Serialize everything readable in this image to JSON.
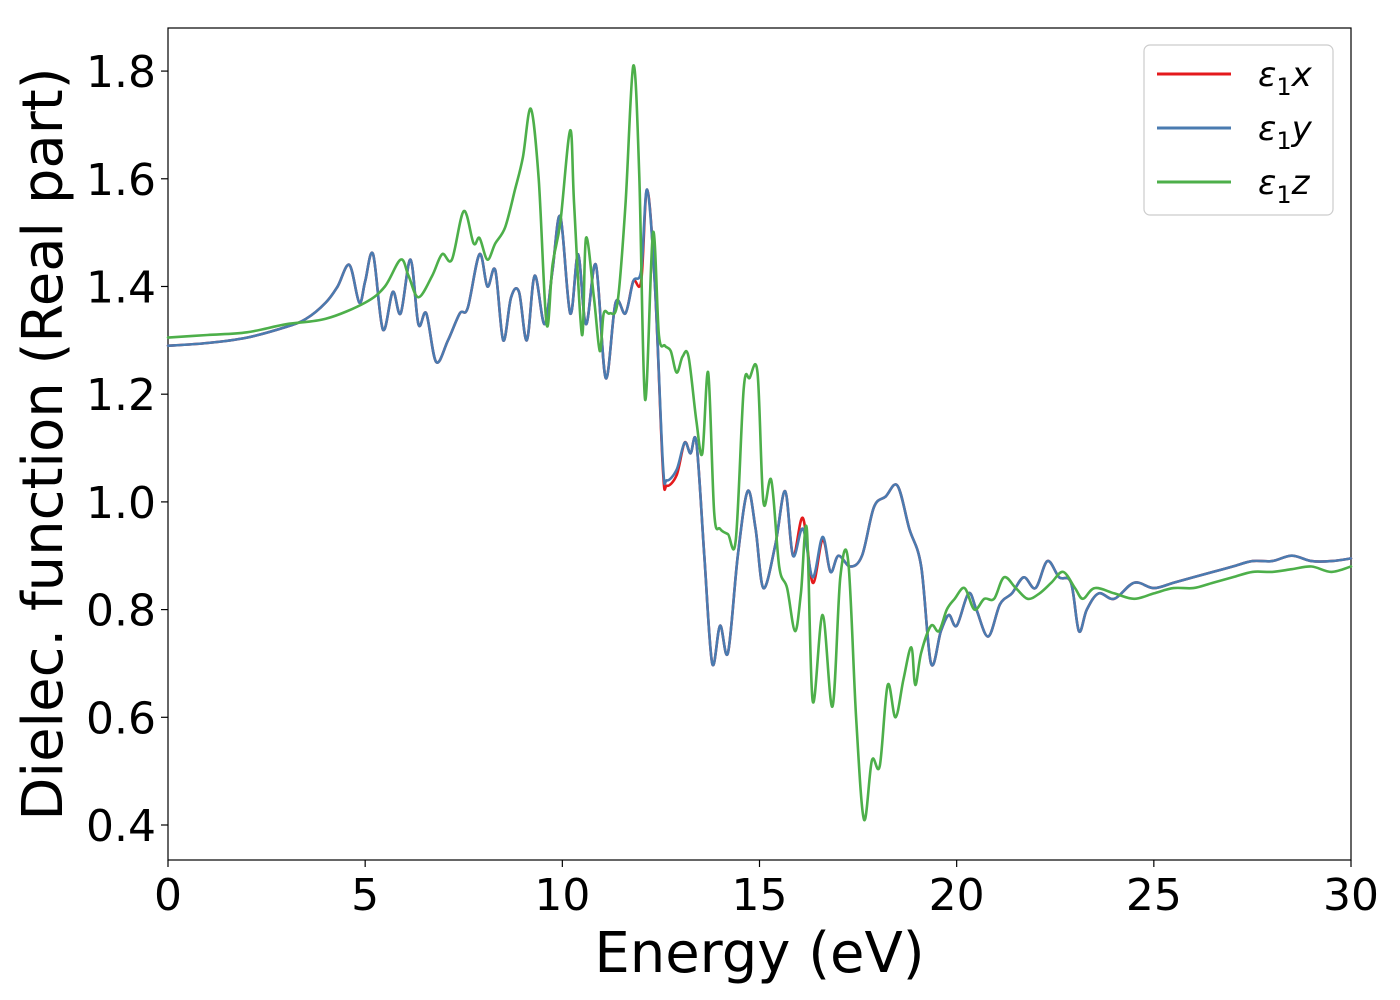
{
  "chart_data": {
    "type": "line",
    "xlabel": "Energy (eV)",
    "ylabel": "Dielec. function (Real part)",
    "xlim": [
      0,
      30
    ],
    "ylim": [
      0.335,
      1.88
    ],
    "xticks": [
      0,
      5,
      10,
      15,
      20,
      25,
      30
    ],
    "yticks": [
      0.4,
      0.6,
      0.8,
      1.0,
      1.2,
      1.4,
      1.6,
      1.8
    ],
    "xtick_labels": [
      "0",
      "5",
      "10",
      "15",
      "20",
      "25",
      "30"
    ],
    "ytick_labels": [
      "0.4",
      "0.6",
      "0.8",
      "1.0",
      "1.2",
      "1.4",
      "1.6",
      "1.8"
    ],
    "grid": false,
    "legend_position": "top-right",
    "series": [
      {
        "name": "ε1x",
        "legend": {
          "base": "ε",
          "sub": "1",
          "var": "x"
        },
        "color": "#e41a1c",
        "x": [
          0,
          1,
          2,
          3,
          3.5,
          4,
          4.3,
          4.6,
          4.85,
          5.0,
          5.2,
          5.45,
          5.7,
          5.9,
          6.15,
          6.35,
          6.55,
          6.8,
          7.1,
          7.4,
          7.6,
          7.9,
          8.1,
          8.3,
          8.5,
          8.7,
          8.9,
          9.1,
          9.3,
          9.55,
          9.75,
          9.95,
          10.2,
          10.4,
          10.6,
          10.85,
          11.1,
          11.35,
          11.6,
          11.8,
          12.0,
          12.15,
          12.35,
          12.55,
          12.65,
          12.9,
          13.1,
          13.25,
          13.4,
          13.6,
          13.8,
          14.0,
          14.2,
          14.45,
          14.7,
          14.9,
          15.1,
          15.4,
          15.65,
          15.85,
          16.1,
          16.35,
          16.6,
          16.8,
          17.0,
          17.3,
          17.6,
          17.9,
          18.2,
          18.5,
          18.8,
          19.1,
          19.35,
          19.6,
          19.8,
          20.0,
          20.3,
          20.5,
          20.8,
          21.1,
          21.4,
          21.7,
          22.0,
          22.3,
          22.6,
          22.9,
          23.1,
          23.3,
          23.6,
          24.0,
          24.5,
          25.0,
          25.5,
          26.0,
          26.5,
          27.0,
          27.5,
          28.0,
          28.5,
          29.0,
          29.5,
          30.0
        ],
        "y": [
          1.29,
          1.295,
          1.305,
          1.325,
          1.34,
          1.37,
          1.4,
          1.44,
          1.37,
          1.41,
          1.46,
          1.32,
          1.39,
          1.35,
          1.45,
          1.33,
          1.35,
          1.26,
          1.3,
          1.35,
          1.36,
          1.46,
          1.4,
          1.43,
          1.3,
          1.38,
          1.39,
          1.3,
          1.42,
          1.33,
          1.43,
          1.53,
          1.35,
          1.46,
          1.33,
          1.44,
          1.23,
          1.37,
          1.35,
          1.41,
          1.41,
          1.58,
          1.4,
          1.06,
          1.03,
          1.05,
          1.11,
          1.09,
          1.11,
          0.9,
          0.7,
          0.77,
          0.72,
          0.9,
          1.02,
          0.95,
          0.84,
          0.92,
          1.02,
          0.9,
          0.97,
          0.85,
          0.93,
          0.87,
          0.9,
          0.88,
          0.9,
          0.99,
          1.01,
          1.03,
          0.95,
          0.88,
          0.7,
          0.76,
          0.79,
          0.77,
          0.83,
          0.8,
          0.75,
          0.81,
          0.83,
          0.86,
          0.84,
          0.89,
          0.86,
          0.85,
          0.76,
          0.8,
          0.83,
          0.82,
          0.85,
          0.84,
          0.85,
          0.86,
          0.87,
          0.88,
          0.89,
          0.89,
          0.9,
          0.89,
          0.89,
          0.895
        ]
      },
      {
        "name": "ε1y",
        "legend": {
          "base": "ε",
          "sub": "1",
          "var": "y"
        },
        "color": "#4a7bb0",
        "x": [
          0,
          1,
          2,
          3,
          3.5,
          4,
          4.3,
          4.6,
          4.85,
          5.0,
          5.2,
          5.45,
          5.7,
          5.9,
          6.15,
          6.35,
          6.55,
          6.8,
          7.1,
          7.4,
          7.6,
          7.9,
          8.1,
          8.3,
          8.5,
          8.7,
          8.9,
          9.1,
          9.3,
          9.55,
          9.75,
          9.95,
          10.2,
          10.4,
          10.6,
          10.85,
          11.1,
          11.35,
          11.6,
          11.8,
          12.0,
          12.15,
          12.35,
          12.55,
          12.65,
          12.9,
          13.1,
          13.25,
          13.4,
          13.6,
          13.8,
          14.0,
          14.2,
          14.45,
          14.7,
          14.9,
          15.1,
          15.4,
          15.65,
          15.85,
          16.1,
          16.35,
          16.6,
          16.8,
          17.0,
          17.3,
          17.6,
          17.9,
          18.2,
          18.5,
          18.8,
          19.1,
          19.35,
          19.6,
          19.8,
          20.0,
          20.3,
          20.5,
          20.8,
          21.1,
          21.4,
          21.7,
          22.0,
          22.3,
          22.6,
          22.9,
          23.1,
          23.3,
          23.6,
          24.0,
          24.5,
          25.0,
          25.5,
          26.0,
          26.5,
          27.0,
          27.5,
          28.0,
          28.5,
          29.0,
          29.5,
          30.0
        ],
        "y": [
          1.29,
          1.295,
          1.305,
          1.325,
          1.34,
          1.37,
          1.4,
          1.44,
          1.37,
          1.41,
          1.46,
          1.32,
          1.39,
          1.35,
          1.45,
          1.33,
          1.35,
          1.26,
          1.3,
          1.35,
          1.36,
          1.46,
          1.4,
          1.43,
          1.3,
          1.38,
          1.39,
          1.3,
          1.42,
          1.33,
          1.43,
          1.53,
          1.35,
          1.46,
          1.33,
          1.44,
          1.23,
          1.37,
          1.35,
          1.41,
          1.43,
          1.58,
          1.4,
          1.07,
          1.04,
          1.06,
          1.11,
          1.09,
          1.11,
          0.9,
          0.7,
          0.77,
          0.72,
          0.9,
          1.02,
          0.95,
          0.84,
          0.92,
          1.02,
          0.9,
          0.95,
          0.86,
          0.935,
          0.87,
          0.9,
          0.88,
          0.9,
          0.99,
          1.01,
          1.03,
          0.95,
          0.88,
          0.7,
          0.76,
          0.79,
          0.77,
          0.83,
          0.8,
          0.75,
          0.81,
          0.83,
          0.86,
          0.84,
          0.89,
          0.86,
          0.85,
          0.76,
          0.8,
          0.83,
          0.82,
          0.85,
          0.84,
          0.85,
          0.86,
          0.87,
          0.88,
          0.89,
          0.89,
          0.9,
          0.89,
          0.89,
          0.895
        ]
      },
      {
        "name": "ε1z",
        "legend": {
          "base": "ε",
          "sub": "1",
          "var": "z"
        },
        "color": "#4daf4a",
        "x": [
          0,
          1,
          2,
          3,
          4,
          5,
          5.5,
          5.9,
          6.1,
          6.35,
          6.7,
          6.95,
          7.2,
          7.5,
          7.75,
          7.9,
          8.1,
          8.3,
          8.55,
          8.8,
          9.0,
          9.2,
          9.4,
          9.6,
          9.75,
          9.95,
          10.2,
          10.3,
          10.5,
          10.6,
          10.8,
          10.95,
          11.05,
          11.2,
          11.4,
          11.6,
          11.8,
          11.95,
          12.1,
          12.3,
          12.45,
          12.6,
          12.75,
          12.9,
          13.05,
          13.2,
          13.4,
          13.55,
          13.7,
          13.85,
          14.0,
          14.2,
          14.4,
          14.6,
          14.75,
          14.95,
          15.1,
          15.3,
          15.5,
          15.7,
          15.9,
          16.05,
          16.2,
          16.35,
          16.6,
          16.85,
          17.05,
          17.25,
          17.45,
          17.65,
          17.85,
          18.05,
          18.25,
          18.45,
          18.65,
          18.85,
          18.95,
          19.1,
          19.35,
          19.55,
          19.75,
          19.95,
          20.2,
          20.45,
          20.7,
          20.95,
          21.2,
          21.5,
          21.8,
          22.1,
          22.4,
          22.7,
          23.0,
          23.2,
          23.5,
          24.0,
          24.5,
          25.0,
          25.5,
          26.0,
          26.5,
          27.0,
          27.5,
          28.0,
          28.5,
          29.0,
          29.5,
          30.0
        ],
        "y": [
          1.305,
          1.31,
          1.315,
          1.33,
          1.34,
          1.37,
          1.4,
          1.45,
          1.42,
          1.38,
          1.42,
          1.46,
          1.45,
          1.54,
          1.48,
          1.49,
          1.45,
          1.48,
          1.51,
          1.58,
          1.64,
          1.73,
          1.6,
          1.33,
          1.44,
          1.52,
          1.69,
          1.55,
          1.31,
          1.49,
          1.38,
          1.28,
          1.35,
          1.35,
          1.37,
          1.55,
          1.81,
          1.61,
          1.19,
          1.5,
          1.31,
          1.29,
          1.28,
          1.24,
          1.27,
          1.27,
          1.15,
          1.09,
          1.24,
          0.98,
          0.95,
          0.94,
          0.93,
          1.21,
          1.23,
          1.24,
          1.0,
          1.04,
          0.88,
          0.84,
          0.76,
          0.83,
          0.95,
          0.63,
          0.79,
          0.62,
          0.86,
          0.89,
          0.6,
          0.41,
          0.52,
          0.51,
          0.66,
          0.6,
          0.67,
          0.73,
          0.66,
          0.72,
          0.77,
          0.76,
          0.8,
          0.82,
          0.84,
          0.8,
          0.82,
          0.82,
          0.86,
          0.84,
          0.82,
          0.83,
          0.85,
          0.87,
          0.84,
          0.82,
          0.84,
          0.83,
          0.82,
          0.83,
          0.84,
          0.84,
          0.85,
          0.86,
          0.87,
          0.87,
          0.875,
          0.88,
          0.87,
          0.88
        ]
      }
    ]
  }
}
